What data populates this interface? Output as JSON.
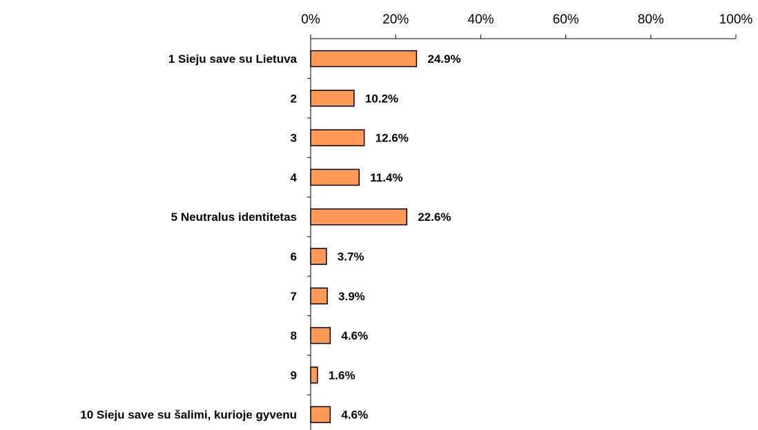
{
  "chart_data": {
    "type": "bar",
    "orientation": "horizontal",
    "title": "",
    "xlabel": "",
    "ylabel": "",
    "xlim": [
      0,
      100
    ],
    "ticks": [
      "0%",
      "20%",
      "40%",
      "60%",
      "80%",
      "100%"
    ],
    "tick_values": [
      0,
      20,
      40,
      60,
      80,
      100
    ],
    "categories": [
      "1  Sieju save su Lietuva",
      "2",
      "3",
      "4",
      "5  Neutralus identitetas",
      "6",
      "7",
      "8",
      "9",
      "10  Sieju save su šalimi, kurioje gyvenu"
    ],
    "values": [
      24.9,
      10.2,
      12.6,
      11.4,
      22.6,
      3.7,
      3.9,
      4.6,
      1.6,
      4.6
    ],
    "data_labels": [
      "24.9%",
      "10.2%",
      "12.6%",
      "11.4%",
      "22.6%",
      "3.7%",
      "3.9%",
      "4.6%",
      "1.6%",
      "4.6%"
    ],
    "bar_color": "#FF9955",
    "bar_edge_color": "#000000",
    "grid": false,
    "legend": "none"
  }
}
